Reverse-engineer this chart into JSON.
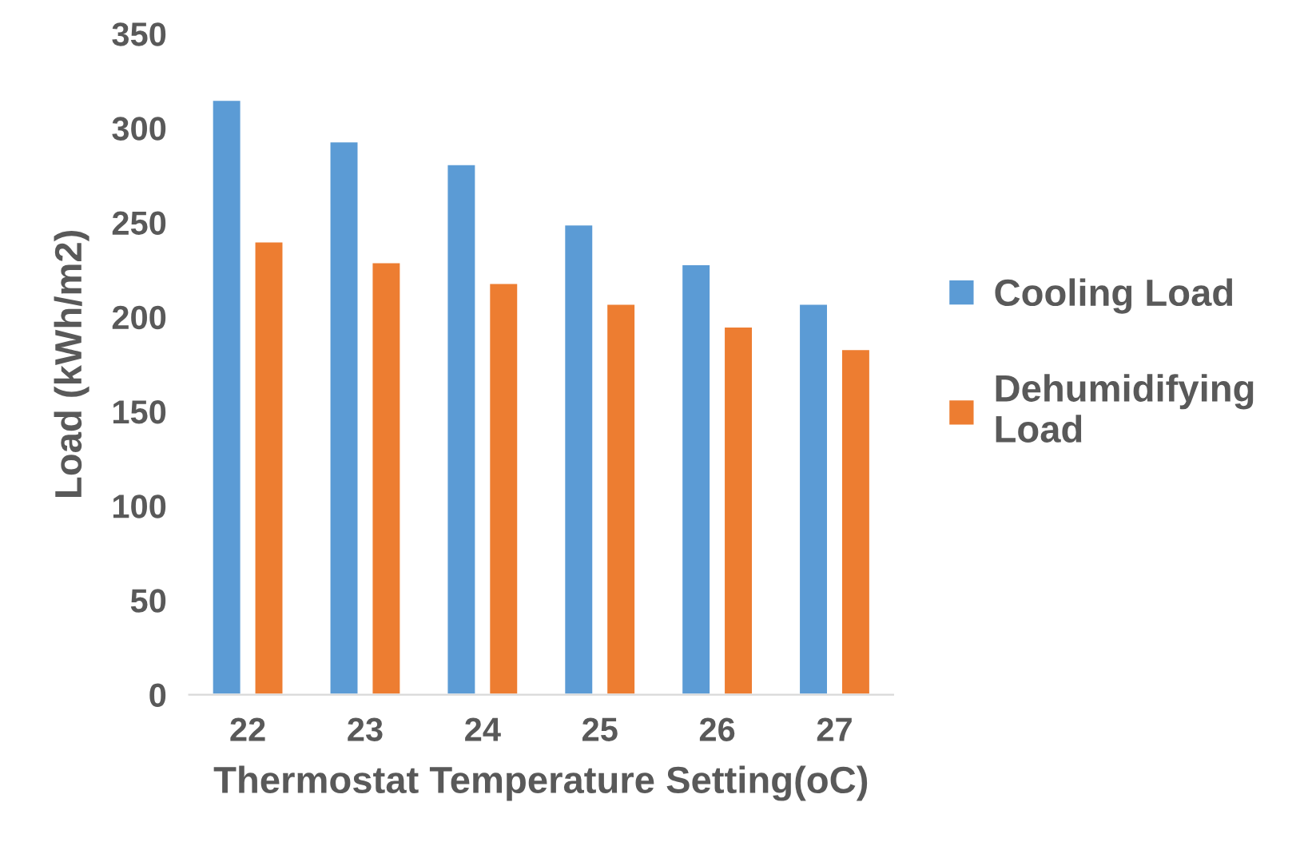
{
  "chart_data": {
    "type": "bar",
    "xlabel": "Thermostat Temperature Setting(oC)",
    "ylabel": "Load (kWh/m2)",
    "categories": [
      "22",
      "23",
      "24",
      "25",
      "26",
      "27"
    ],
    "series": [
      {
        "name": "Cooling Load",
        "color": "#5b9bd5",
        "values": [
          315,
          293,
          281,
          249,
          228,
          207
        ]
      },
      {
        "name": "Dehumidifying\nLoad",
        "color": "#ed7d31",
        "values": [
          240,
          229,
          218,
          207,
          195,
          183
        ]
      }
    ],
    "ylim": [
      0,
      350
    ],
    "yticks": [
      0,
      50,
      100,
      150,
      200,
      250,
      300,
      350
    ],
    "grid": false,
    "legend": "right"
  }
}
